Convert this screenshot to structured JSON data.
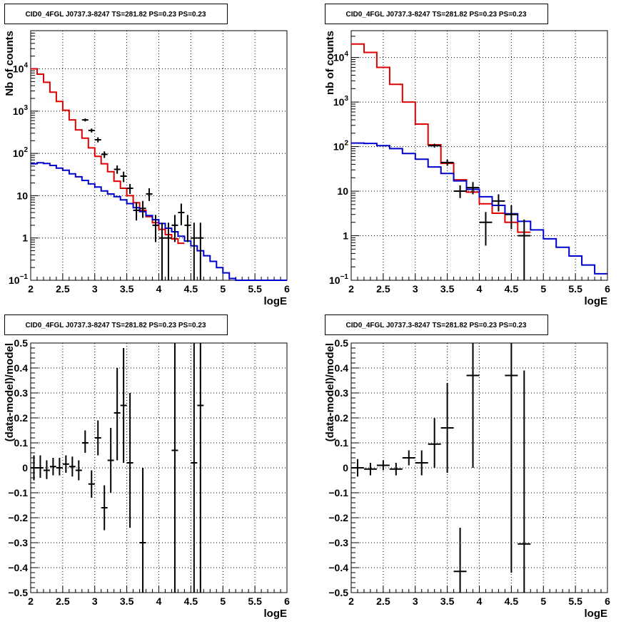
{
  "chart_data": [
    {
      "type": "histogram",
      "title": "CID0_4FGL J0737.3-8247 TS=281.82 PS=0.23 PS=0.23",
      "xlabel": "logE",
      "ylabel": "Nb of counts",
      "xlim": [
        2,
        6
      ],
      "ylim": [
        0.1,
        80000
      ],
      "ylog": true,
      "grid": true,
      "xticks": [
        "2",
        "2.5",
        "3",
        "3.5",
        "4",
        "4.5",
        "5",
        "5.5",
        "6"
      ],
      "yticks": [
        {
          "v": 10000,
          "base": "10",
          "exp": "4"
        },
        {
          "v": 1000,
          "base": "10",
          "exp": "3"
        },
        {
          "v": 100,
          "base": "10",
          "exp": "2"
        },
        {
          "v": 10,
          "label": "10"
        },
        {
          "v": 1,
          "label": "1"
        },
        {
          "v": 0.1,
          "base": "10",
          "exp": "−1"
        }
      ],
      "series": [
        {
          "color": "#e00000",
          "style": "step",
          "edges_start": 2.0,
          "bin": 0.1,
          "values": [
            10000,
            7500,
            4800,
            2800,
            1700,
            1050,
            620,
            360,
            230,
            135,
            85,
            57,
            37,
            22,
            15,
            10,
            6.8,
            4.5,
            3.2,
            2.3,
            1.6,
            1.2,
            0.95,
            0.75
          ]
        },
        {
          "color": "#0000cc",
          "style": "step",
          "edges_start": 2.0,
          "bin": 0.1,
          "values": [
            57,
            60,
            58,
            52,
            45,
            40,
            33,
            28,
            23,
            19,
            16,
            13,
            11,
            9.5,
            8,
            6.5,
            5.2,
            4.2,
            3.4,
            2.7,
            2.2,
            1.7,
            1.4,
            1.1,
            0.85,
            0.65,
            0.5,
            0.38,
            0.28,
            0.2,
            0.15,
            0.11,
            0.1,
            0.1,
            0.1,
            0.1,
            0.1,
            0.1,
            0.1,
            0.1
          ]
        },
        {
          "color": "#000000",
          "style": "errors",
          "xerr": 0.05,
          "points": [
            {
              "x": 2.85,
              "y": 620,
              "lo": 570,
              "hi": 670
            },
            {
              "x": 2.95,
              "y": 350,
              "lo": 312,
              "hi": 388
            },
            {
              "x": 3.05,
              "y": 210,
              "lo": 182,
              "hi": 240
            },
            {
              "x": 3.15,
              "y": 95,
              "lo": 78,
              "hi": 112
            },
            {
              "x": 3.35,
              "y": 42,
              "lo": 33,
              "hi": 52
            },
            {
              "x": 3.45,
              "y": 29,
              "lo": 21,
              "hi": 37
            },
            {
              "x": 3.55,
              "y": 15,
              "lo": 11,
              "hi": 19
            },
            {
              "x": 3.65,
              "y": 4.5,
              "lo": 2.6,
              "hi": 7
            },
            {
              "x": 3.75,
              "y": 5,
              "lo": 3,
              "hi": 7.5
            },
            {
              "x": 3.85,
              "y": 11,
              "lo": 7.5,
              "hi": 15
            },
            {
              "x": 3.95,
              "y": 2,
              "lo": 0.8,
              "hi": 3.5
            },
            {
              "x": 4.05,
              "y": 1,
              "lo": 0.1,
              "hi": 2.3
            },
            {
              "x": 4.15,
              "y": 1,
              "lo": 0.1,
              "hi": 2.3
            },
            {
              "x": 4.25,
              "y": 2,
              "lo": 0.8,
              "hi": 3.5
            },
            {
              "x": 4.35,
              "y": 4,
              "lo": 2,
              "hi": 6.5
            },
            {
              "x": 4.45,
              "y": 2,
              "lo": 0.8,
              "hi": 3.5
            },
            {
              "x": 4.55,
              "y": 1,
              "lo": 0.1,
              "hi": 2.3
            },
            {
              "x": 4.65,
              "y": 1,
              "lo": 0.1,
              "hi": 2.3
            }
          ]
        }
      ]
    },
    {
      "type": "histogram",
      "title": "CID0_4FGL J0737.3-8247 TS=281.82 PS=0.23 PS=0.23",
      "xlabel": "logE",
      "ylabel": "nb of counts",
      "xlim": [
        2,
        6
      ],
      "ylim": [
        0.1,
        40000
      ],
      "ylog": true,
      "grid": true,
      "xticks": [
        "2",
        "2.5",
        "3",
        "3.5",
        "4",
        "4.5",
        "5",
        "5.5",
        "6"
      ],
      "yticks": [
        {
          "v": 10000,
          "base": "10",
          "exp": "4"
        },
        {
          "v": 1000,
          "base": "10",
          "exp": "3"
        },
        {
          "v": 100,
          "base": "10",
          "exp": "2"
        },
        {
          "v": 10,
          "label": "10"
        },
        {
          "v": 1,
          "label": "1"
        },
        {
          "v": 0.1,
          "base": "10",
          "exp": "−1"
        }
      ],
      "series": [
        {
          "color": "#e00000",
          "style": "step",
          "edges_start": 2.0,
          "bin": 0.2,
          "values": [
            20000,
            13000,
            6000,
            2500,
            1000,
            320,
            110,
            42,
            18,
            9.5,
            5.2,
            3.2,
            2,
            1.2
          ]
        },
        {
          "color": "#0000cc",
          "style": "step",
          "edges_start": 2.0,
          "bin": 0.2,
          "values": [
            120,
            118,
            105,
            90,
            70,
            52,
            35,
            25,
            17,
            11,
            7.5,
            4.8,
            3.1,
            2.1,
            1.35,
            0.85,
            0.55,
            0.35,
            0.22,
            0.14
          ]
        },
        {
          "color": "#000000",
          "style": "errors",
          "xerr": 0.1,
          "points": [
            {
              "x": 3.3,
              "y": 105,
              "lo": 95,
              "hi": 116
            },
            {
              "x": 3.5,
              "y": 44,
              "lo": 37,
              "hi": 51
            },
            {
              "x": 3.7,
              "y": 10,
              "lo": 7,
              "hi": 13.5
            },
            {
              "x": 3.9,
              "y": 12,
              "lo": 8.5,
              "hi": 16
            },
            {
              "x": 4.1,
              "y": 2,
              "lo": 0.6,
              "hi": 3.4
            },
            {
              "x": 4.3,
              "y": 6,
              "lo": 3.5,
              "hi": 8.5
            },
            {
              "x": 4.5,
              "y": 3,
              "lo": 1.4,
              "hi": 4.8
            },
            {
              "x": 4.7,
              "y": 1,
              "lo": 0.1,
              "hi": 2.3
            }
          ]
        }
      ]
    },
    {
      "type": "errorbar",
      "title": "CID0_4FGL J0737.3-8247 TS=281.82 PS=0.23 PS=0.23",
      "xlabel": "logE",
      "ylabel": "(data-model)/model",
      "xlim": [
        2,
        6
      ],
      "ylim": [
        -0.5,
        0.5
      ],
      "ylog": false,
      "grid": true,
      "xticks": [
        "2",
        "2.5",
        "3",
        "3.5",
        "4",
        "4.5",
        "5",
        "5.5",
        "6"
      ],
      "yticks": [
        {
          "v": 0.5,
          "label": "0.5"
        },
        {
          "v": 0.4,
          "label": "0.4"
        },
        {
          "v": 0.3,
          "label": "0.3"
        },
        {
          "v": 0.2,
          "label": "0.2"
        },
        {
          "v": 0.1,
          "label": "0.1"
        },
        {
          "v": 0,
          "label": "0"
        },
        {
          "v": -0.1,
          "label": "−0.1"
        },
        {
          "v": -0.2,
          "label": "−0.2"
        },
        {
          "v": -0.3,
          "label": "−0.3"
        },
        {
          "v": -0.4,
          "label": "−0.4"
        },
        {
          "v": -0.5,
          "label": "−0.5"
        }
      ],
      "series": [
        {
          "color": "#000000",
          "style": "errors",
          "xerr": 0.05,
          "points": [
            {
              "x": 2.05,
              "y": 0.0,
              "lo": -0.05,
              "hi": 0.05
            },
            {
              "x": 2.15,
              "y": 0.0,
              "lo": -0.04,
              "hi": 0.05
            },
            {
              "x": 2.25,
              "y": -0.01,
              "lo": -0.045,
              "hi": 0.03
            },
            {
              "x": 2.35,
              "y": 0.005,
              "lo": -0.03,
              "hi": 0.04
            },
            {
              "x": 2.45,
              "y": 0.0,
              "lo": -0.03,
              "hi": 0.04
            },
            {
              "x": 2.55,
              "y": 0.015,
              "lo": -0.02,
              "hi": 0.05
            },
            {
              "x": 2.65,
              "y": 0.005,
              "lo": -0.035,
              "hi": 0.045
            },
            {
              "x": 2.75,
              "y": -0.01,
              "lo": -0.05,
              "hi": 0.03
            },
            {
              "x": 2.85,
              "y": 0.1,
              "lo": 0.06,
              "hi": 0.15
            },
            {
              "x": 2.95,
              "y": -0.065,
              "lo": -0.12,
              "hi": -0.01
            },
            {
              "x": 3.05,
              "y": 0.12,
              "lo": 0.05,
              "hi": 0.19
            },
            {
              "x": 3.15,
              "y": -0.16,
              "lo": -0.25,
              "hi": -0.07
            },
            {
              "x": 3.25,
              "y": 0.03,
              "lo": -0.1,
              "hi": 0.16
            },
            {
              "x": 3.35,
              "y": 0.22,
              "lo": 0.03,
              "hi": 0.4
            },
            {
              "x": 3.45,
              "y": 0.25,
              "lo": 0.02,
              "hi": 0.48
            },
            {
              "x": 3.55,
              "y": 0.02,
              "lo": -0.24,
              "hi": 0.3
            },
            {
              "x": 3.75,
              "y": -0.3,
              "lo": -0.5,
              "hi": 0.0
            },
            {
              "x": 4.25,
              "y": 0.07,
              "lo": -0.5,
              "hi": 0.5
            },
            {
              "x": 4.55,
              "y": 0.02,
              "lo": -0.5,
              "hi": 0.5
            },
            {
              "x": 4.65,
              "y": 0.25,
              "lo": -0.5,
              "hi": 0.5
            }
          ]
        }
      ]
    },
    {
      "type": "errorbar",
      "title": "CID0_4FGL J0737.3-8247 TS=281.82 PS=0.23 PS=0.23",
      "xlabel": "logE",
      "ylabel": "(data-model)/model",
      "xlim": [
        2,
        6
      ],
      "ylim": [
        -0.5,
        0.5
      ],
      "ylog": false,
      "grid": true,
      "xticks": [
        "2",
        "2.5",
        "3",
        "3.5",
        "4",
        "4.5",
        "5",
        "5.5",
        "6"
      ],
      "yticks": [
        {
          "v": 0.5,
          "label": "0.5"
        },
        {
          "v": 0.4,
          "label": "0.4"
        },
        {
          "v": 0.3,
          "label": "0.3"
        },
        {
          "v": 0.2,
          "label": "0.2"
        },
        {
          "v": 0.1,
          "label": "0.1"
        },
        {
          "v": 0,
          "label": "0"
        },
        {
          "v": -0.1,
          "label": "−0.1"
        },
        {
          "v": -0.2,
          "label": "−0.2"
        },
        {
          "v": -0.3,
          "label": "−0.3"
        },
        {
          "v": -0.4,
          "label": "−0.4"
        },
        {
          "v": -0.5,
          "label": "−0.5"
        }
      ],
      "series": [
        {
          "color": "#000000",
          "style": "errors",
          "xerr": 0.1,
          "points": [
            {
              "x": 2.1,
              "y": 0.0,
              "lo": -0.035,
              "hi": 0.035
            },
            {
              "x": 2.3,
              "y": -0.005,
              "lo": -0.03,
              "hi": 0.02
            },
            {
              "x": 2.5,
              "y": 0.01,
              "lo": -0.01,
              "hi": 0.03
            },
            {
              "x": 2.7,
              "y": -0.005,
              "lo": -0.03,
              "hi": 0.02
            },
            {
              "x": 2.9,
              "y": 0.04,
              "lo": 0.01,
              "hi": 0.07
            },
            {
              "x": 3.1,
              "y": 0.02,
              "lo": -0.03,
              "hi": 0.07
            },
            {
              "x": 3.3,
              "y": 0.095,
              "lo": 0.0,
              "hi": 0.2
            },
            {
              "x": 3.5,
              "y": 0.16,
              "lo": -0.02,
              "hi": 0.34
            },
            {
              "x": 3.7,
              "y": -0.415,
              "lo": -0.5,
              "hi": -0.24
            },
            {
              "x": 3.9,
              "y": 0.37,
              "lo": 0.0,
              "hi": 0.5
            },
            {
              "x": 4.5,
              "y": 0.37,
              "lo": -0.42,
              "hi": 0.5
            },
            {
              "x": 4.7,
              "y": -0.305,
              "lo": -0.5,
              "hi": 0.39
            }
          ]
        }
      ]
    }
  ]
}
